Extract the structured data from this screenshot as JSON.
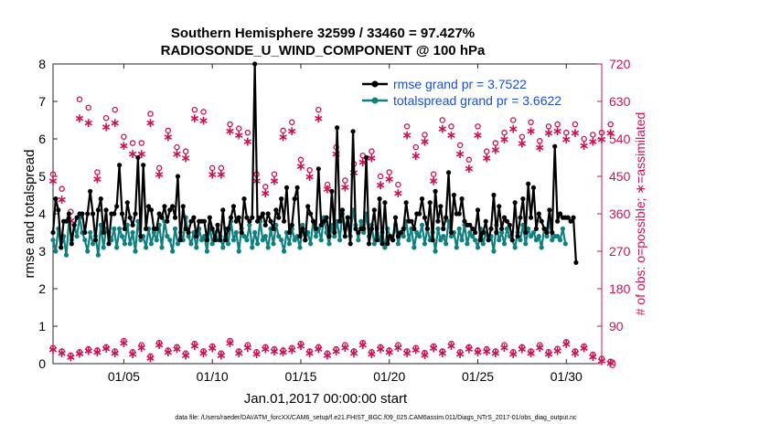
{
  "chart_data": {
    "type": "line",
    "title_line1": "Southern Hemisphere 32599 / 33460 = 97.427%",
    "title_line2": "RADIOSONDE_U_WIND_COMPONENT @ 100 hPa",
    "xlabel": "Jan.01,2017 00:00:00 start",
    "ylabel_left": "rmse and totalspread",
    "ylabel_right": "# of obs: o=possible; ∗=assimilated",
    "footnote": "data file: /Users/raeder/DAI/ATM_forcXX/CAM6_setup/f.e21.FHIST_BGC.f09_025.CAM6assim.011/Diags_NTrS_2017-01/obs_diag_output.nc",
    "xlim": [
      1.0,
      32.0
    ],
    "ylim_left": [
      0,
      8
    ],
    "ylim_right": [
      0,
      720
    ],
    "x_ticks": [
      5,
      10,
      15,
      20,
      25,
      30
    ],
    "x_tick_labels": [
      "01/05",
      "01/10",
      "01/15",
      "01/20",
      "01/25",
      "01/30"
    ],
    "y_ticks_left": [
      "0",
      "1",
      "2",
      "3",
      "4",
      "5",
      "6",
      "7",
      "8"
    ],
    "y_ticks_right": [
      "0",
      "90",
      "180",
      "270",
      "360",
      "450",
      "540",
      "630",
      "720"
    ],
    "legend": [
      "rmse grand pr = 3.7522",
      "totalspread grand pr = 3.6622"
    ],
    "colors": {
      "rmse": "#000000",
      "spread": "#0e8080",
      "obs": "#cc1157",
      "legend_text": "#1a4fd6"
    },
    "series": [
      {
        "name": "rmse",
        "values": [
          3.5,
          4.4,
          4.1,
          3.1,
          3.8,
          3.8,
          4.0,
          3.2,
          3.7,
          3.9,
          4.0,
          4.0,
          3.5,
          4.0,
          4.6,
          4.0,
          3.3,
          4.1,
          4.4,
          3.5,
          4.1,
          3.2,
          4.0,
          4.0,
          4.2,
          5.3,
          4.0,
          3.6,
          4.3,
          3.9,
          3.7,
          4.0,
          5.5,
          3.4,
          5.3,
          3.6,
          4.2,
          4.1,
          3.6,
          3.6,
          4.0,
          3.9,
          4.2,
          3.8,
          4.1,
          4.2,
          3.9,
          5.0,
          3.3,
          4.2,
          3.6,
          3.5,
          3.8,
          3.9,
          3.4,
          3.8,
          3.8,
          3.8,
          3.3,
          3.9,
          3.6,
          3.3,
          3.7,
          3.3,
          4.1,
          3.3,
          3.6,
          3.9,
          4.2,
          3.8,
          3.9,
          3.5,
          4.4,
          3.9,
          3.8,
          3.9,
          8.0,
          3.8,
          3.9,
          4.0,
          3.7,
          4.0,
          3.8,
          3.6,
          4.1,
          3.9,
          4.4,
          3.8,
          4.7,
          3.5,
          3.7,
          4.4,
          4.7,
          3.4,
          3.6,
          3.3,
          4.2,
          4.0,
          3.8,
          3.6,
          5.2,
          3.7,
          3.8,
          3.9,
          3.4,
          4.6,
          3.5,
          6.3,
          3.8,
          4.1,
          3.4,
          3.9,
          3.2,
          6.2,
          3.6,
          3.5,
          3.6,
          3.6,
          5.5,
          3.2,
          3.6,
          4.1,
          3.3,
          4.4,
          3.2,
          4.3,
          3.2,
          3.4,
          3.3,
          3.9,
          3.4,
          3.5,
          3.6,
          4.3,
          3.8,
          3.8,
          3.6,
          4.0,
          4.0,
          4.4,
          3.9,
          3.6,
          4.3,
          3.3,
          4.6,
          3.8,
          4.2,
          3.6,
          3.9,
          5.1,
          3.5,
          4.5,
          4.0,
          4.0,
          4.4,
          3.8,
          3.7,
          3.7,
          3.6,
          3.5,
          4.1,
          3.3,
          3.5,
          3.8,
          3.3,
          3.6,
          4.5,
          3.5,
          4.2,
          3.6,
          3.9,
          3.8,
          3.7,
          3.3,
          4.3,
          3.4,
          3.9,
          4.4,
          3.5,
          4.8,
          3.9,
          4.7,
          3.6,
          4.0,
          3.8,
          3.6,
          3.5,
          4.1,
          3.5,
          5.8,
          3.8,
          4.0,
          3.9,
          3.9,
          3.9,
          3.8,
          3.9,
          2.7
        ],
        "xstart": 1.0,
        "xstep": 0.15
      },
      {
        "name": "totalspread",
        "values": [
          3.3,
          3.0,
          3.6,
          3.1,
          3.4,
          2.9,
          3.8,
          3.3,
          3.7,
          3.4,
          3.9,
          3.5,
          3.3,
          3.0,
          3.5,
          3.2,
          3.4,
          2.9,
          3.7,
          3.1,
          3.6,
          3.5,
          3.3,
          3.6,
          3.1,
          3.6,
          3.4,
          3.2,
          3.7,
          3.2,
          3.5,
          3.0,
          3.8,
          3.3,
          3.4,
          3.1,
          3.6,
          3.2,
          3.5,
          3.3,
          3.7,
          3.1,
          3.8,
          3.4,
          3.3,
          3.0,
          3.6,
          3.2,
          3.5,
          3.3,
          3.9,
          3.4,
          3.2,
          3.5,
          3.1,
          3.6,
          3.3,
          3.4,
          3.0,
          3.7,
          3.2,
          3.5,
          3.3,
          3.4,
          3.1,
          3.6,
          3.2,
          3.8,
          3.3,
          3.5,
          3.0,
          3.6,
          3.4,
          3.3,
          3.7,
          3.1,
          3.5,
          3.2,
          3.8,
          3.3,
          3.4,
          3.1,
          3.6,
          3.2,
          3.7,
          3.4,
          3.3,
          3.0,
          3.5,
          3.2,
          3.6,
          3.3,
          3.4,
          3.1,
          3.7,
          3.3,
          3.5,
          3.2,
          3.8,
          3.4,
          3.6,
          3.3,
          3.9,
          3.5,
          3.2,
          3.7,
          3.4,
          3.8,
          3.3,
          4.0,
          3.6,
          3.9,
          3.4,
          4.1,
          3.7,
          3.3,
          3.8,
          3.5,
          4.0,
          3.4,
          3.7,
          3.2,
          3.6,
          3.3,
          3.5,
          3.1,
          3.6,
          3.4,
          3.3,
          3.7,
          3.2,
          3.5,
          3.4,
          3.8,
          3.3,
          3.6,
          3.1,
          3.5,
          3.4,
          3.7,
          3.2,
          3.6,
          3.3,
          3.5,
          3.0,
          3.6,
          3.3,
          3.4,
          3.2,
          3.8,
          3.4,
          3.5,
          3.1,
          3.6,
          3.3,
          3.7,
          3.2,
          3.5,
          3.4,
          3.3,
          3.1,
          3.6,
          3.2,
          3.5,
          3.3,
          3.4,
          3.0,
          3.7,
          3.3,
          3.5,
          3.2,
          3.6,
          3.4,
          3.3,
          3.1,
          3.5,
          3.3,
          3.7,
          3.2,
          3.6,
          3.4,
          3.5,
          3.3,
          3.4,
          3.1,
          3.6,
          3.4,
          3.8,
          3.3,
          3.4,
          3.4,
          3.3,
          3.6,
          3.2
        ],
        "xstart": 1.0,
        "xstep": 0.15
      },
      {
        "name": "obs_possible_high",
        "values": [
          455,
          420,
          365,
          635,
          615,
          460,
          590,
          610,
          545,
          530,
          530,
          600,
          470,
          560,
          520,
          510,
          610,
          605,
          470,
          470,
          575,
          565,
          555,
          455,
          425,
          455,
          560,
          580,
          490,
          465,
          610,
          430,
          520,
          440,
          480,
          500,
          510,
          450,
          460,
          430,
          570,
          520,
          550,
          455,
          585,
          570,
          525,
          490,
          570,
          510,
          530,
          555,
          585,
          545,
          580,
          535,
          570,
          575,
          555,
          575,
          540,
          550,
          555,
          575
        ],
        "xstart": 1.0,
        "xstep": 0.5
      },
      {
        "name": "obs_assimilated_high",
        "values": [
          440,
          395,
          345,
          590,
          580,
          445,
          570,
          580,
          525,
          505,
          505,
          580,
          455,
          545,
          505,
          495,
          590,
          585,
          455,
          455,
          560,
          550,
          535,
          440,
          410,
          440,
          545,
          560,
          475,
          450,
          590,
          420,
          505,
          425,
          460,
          485,
          495,
          430,
          445,
          410,
          550,
          500,
          535,
          440,
          565,
          550,
          505,
          470,
          550,
          495,
          515,
          540,
          565,
          530,
          560,
          520,
          555,
          560,
          540,
          555,
          525,
          535,
          540,
          555
        ],
        "xstart": 1.0,
        "xstep": 0.5
      },
      {
        "name": "obs_possible_low",
        "values": [
          38,
          30,
          20,
          28,
          35,
          32,
          40,
          30,
          55,
          28,
          45,
          18,
          50,
          32,
          40,
          25,
          48,
          30,
          42,
          25,
          55,
          30,
          45,
          28,
          40,
          35,
          32,
          38,
          48,
          30,
          40,
          25,
          35,
          45,
          30,
          50,
          28,
          40,
          32,
          45,
          30,
          38,
          26,
          42,
          30,
          48,
          28,
          40,
          32,
          35,
          30,
          45,
          28,
          40,
          30,
          45,
          28,
          36,
          52,
          30,
          42,
          22,
          12,
          5
        ],
        "xstart": 1.0,
        "xstep": 0.5
      },
      {
        "name": "obs_assimilated_low",
        "values": [
          35,
          26,
          16,
          25,
          32,
          28,
          37,
          26,
          50,
          24,
          40,
          14,
          46,
          28,
          36,
          21,
          44,
          26,
          38,
          21,
          50,
          26,
          40,
          24,
          36,
          31,
          28,
          34,
          44,
          26,
          36,
          21,
          31,
          40,
          26,
          46,
          24,
          36,
          28,
          40,
          26,
          34,
          22,
          38,
          26,
          44,
          24,
          36,
          28,
          31,
          26,
          40,
          24,
          36,
          26,
          40,
          24,
          32,
          48,
          26,
          38,
          18,
          8,
          2
        ],
        "xstart": 1.0,
        "xstep": 0.5
      }
    ]
  }
}
